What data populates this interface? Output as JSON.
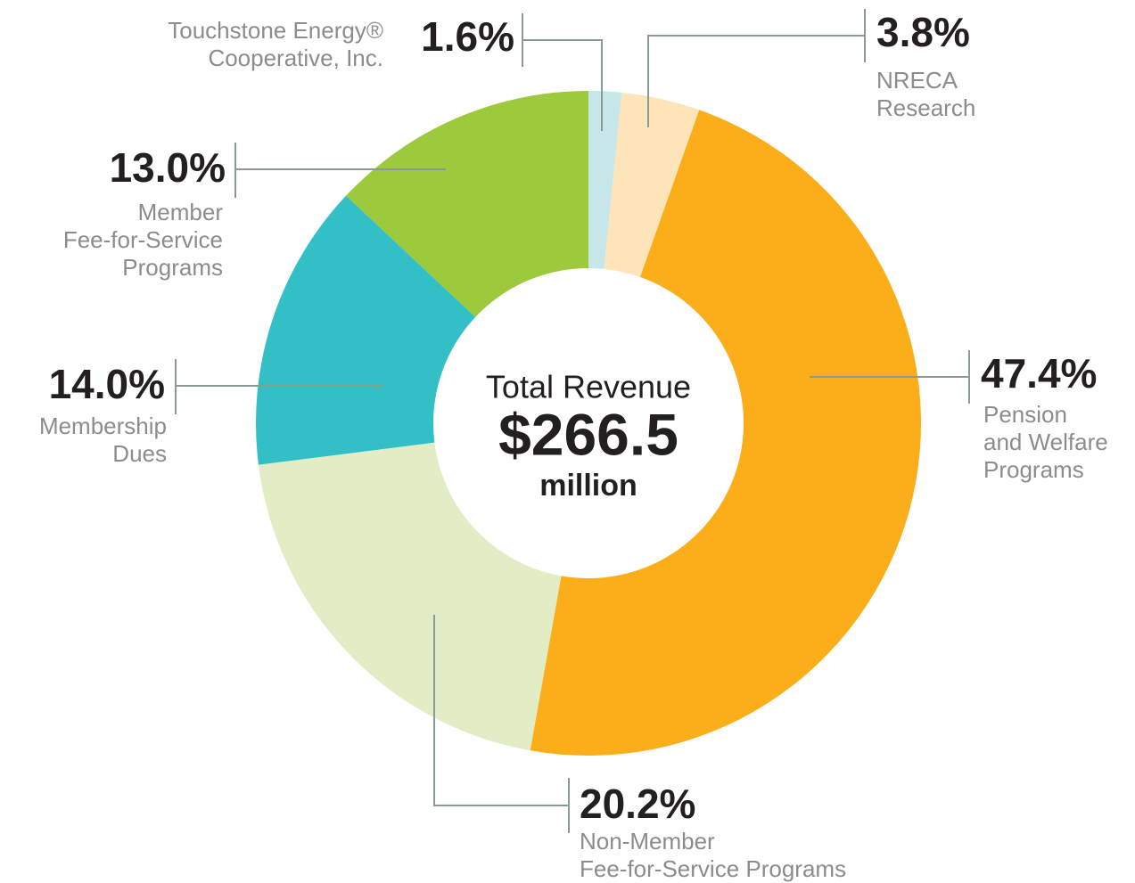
{
  "chart_data": {
    "type": "pie",
    "categories": [
      [
        "Touchstone Energy®",
        "Cooperative, Inc."
      ],
      [
        "NRECA",
        "Research"
      ],
      [
        "Pension",
        "and Welfare",
        "Programs"
      ],
      [
        "Non-Member",
        "Fee-for-Service Programs"
      ],
      [
        "Membership",
        "Dues"
      ],
      [
        "Member",
        "Fee-for-Service",
        "Programs"
      ]
    ],
    "values": [
      1.6,
      3.8,
      47.4,
      20.2,
      14.0,
      13.0
    ],
    "value_labels": [
      "1.6%",
      "3.8%",
      "47.4%",
      "20.2%",
      "14.0%",
      "13.0%"
    ],
    "colors": [
      "#c6e6e9",
      "#fde5b9",
      "#fbae19",
      "#e2edc5",
      "#33bfc6",
      "#9dc93c"
    ],
    "center_text": [
      "Total Revenue",
      "$266.5",
      "million"
    ]
  }
}
